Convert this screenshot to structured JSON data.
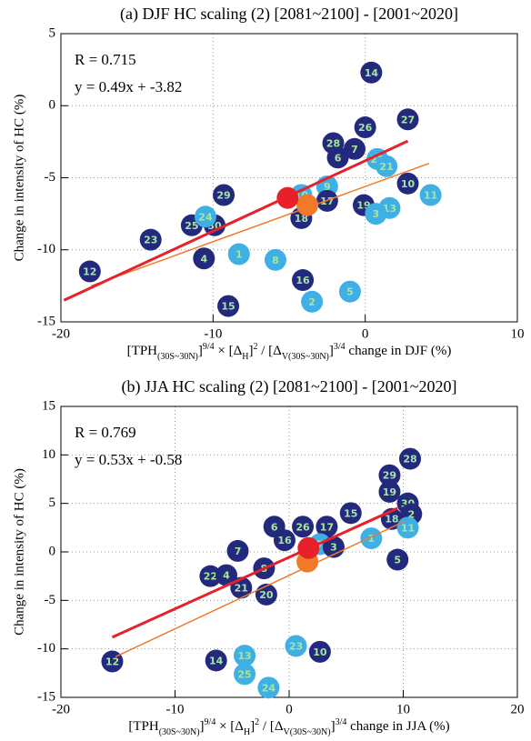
{
  "chart_data": [
    {
      "type": "scatter",
      "title": "(a) DJF HC scaling (2) [2081~2100] - [2001~2020]",
      "xlabel": [
        {
          "text": "[TPH"
        },
        {
          "text": "(30S~30N)",
          "shift": "sub"
        },
        {
          "text": "]"
        },
        {
          "text": "9/4",
          "shift": "super"
        },
        {
          "text": " × [Δ"
        },
        {
          "text": "H",
          "shift": "sub"
        },
        {
          "text": "]"
        },
        {
          "text": "2",
          "shift": "super"
        },
        {
          "text": " / [Δ"
        },
        {
          "text": "V(30S~30N)",
          "shift": "sub"
        },
        {
          "text": "]"
        },
        {
          "text": "3/4",
          "shift": "super"
        },
        {
          "text": " change in DJF (%)"
        }
      ],
      "ylabel": "Change in intensity of HC (%)",
      "annotations": [
        "R = 0.715",
        "y = 0.49x + -3.82"
      ],
      "xlim": [
        -20,
        10
      ],
      "xticks": [
        -20,
        -10,
        0,
        10
      ],
      "ylim": [
        -15,
        5
      ],
      "yticks": [
        -15,
        -10,
        -5,
        0,
        5
      ],
      "grid": true,
      "fit_lines": [
        {
          "color": "#f07a28",
          "x": [
            -18,
            4.2
          ],
          "y": [
            -12.5,
            -4.0
          ]
        },
        {
          "color": "#e8202a",
          "x": [
            -19.8,
            2.8
          ],
          "y": [
            -13.5,
            -2.45
          ]
        }
      ],
      "points": [
        {
          "label": "14",
          "x": 0.4,
          "y": 2.3,
          "color": "#232a7e"
        },
        {
          "label": "27",
          "x": 2.8,
          "y": -0.95,
          "color": "#232a7e"
        },
        {
          "label": "26",
          "x": 0,
          "y": -1.5,
          "color": "#232a7e"
        },
        {
          "label": "28",
          "x": -2.1,
          "y": -2.6,
          "color": "#232a7e"
        },
        {
          "label": "7",
          "x": -0.7,
          "y": -3.0,
          "color": "#232a7e"
        },
        {
          "label": "6",
          "x": -1.8,
          "y": -3.6,
          "color": "#232a7e"
        },
        {
          "label": "22",
          "x": 0.8,
          "y": -3.7,
          "color": "#3fb0e6"
        },
        {
          "label": "21",
          "x": 1.4,
          "y": -4.2,
          "color": "#3fb0e6"
        },
        {
          "label": "9",
          "x": -2.5,
          "y": -5.6,
          "color": "#3fb0e6"
        },
        {
          "label": "10",
          "x": 2.8,
          "y": -5.4,
          "color": "#232a7e"
        },
        {
          "label": "11",
          "x": 4.3,
          "y": -6.2,
          "color": "#3fb0e6"
        },
        {
          "label": "19",
          "x": -0.1,
          "y": -6.9,
          "color": "#232a7e"
        },
        {
          "label": "13",
          "x": 1.6,
          "y": -7.1,
          "color": "#3fb0e6"
        },
        {
          "label": "3",
          "x": 0.7,
          "y": -7.5,
          "color": "#3fb0e6"
        },
        {
          "label": "17",
          "x": -2.5,
          "y": -6.6,
          "color": "#232a7e"
        },
        {
          "label": "18",
          "x": -4.2,
          "y": -7.8,
          "color": "#232a7e"
        },
        {
          "label": "10",
          "x": -4.2,
          "y": -6.2,
          "color": "#3fb0e6"
        },
        {
          "label": "29",
          "x": -9.3,
          "y": -6.2,
          "color": "#232a7e"
        },
        {
          "label": "25",
          "x": -11.4,
          "y": -8.3,
          "color": "#232a7e"
        },
        {
          "label": "30",
          "x": -9.9,
          "y": -8.3,
          "color": "#232a7e"
        },
        {
          "label": "24",
          "x": -10.5,
          "y": -7.7,
          "color": "#3fb0e6"
        },
        {
          "label": "23",
          "x": -14.1,
          "y": -9.3,
          "color": "#232a7e"
        },
        {
          "label": "4",
          "x": -10.6,
          "y": -10.6,
          "color": "#232a7e"
        },
        {
          "label": "1",
          "x": -8.3,
          "y": -10.3,
          "color": "#3fb0e6"
        },
        {
          "label": "8",
          "x": -5.9,
          "y": -10.7,
          "color": "#3fb0e6"
        },
        {
          "label": "12",
          "x": -18.1,
          "y": -11.5,
          "color": "#232a7e"
        },
        {
          "label": "16",
          "x": -4.1,
          "y": -12.1,
          "color": "#232a7e"
        },
        {
          "label": "5",
          "x": -1.0,
          "y": -12.9,
          "color": "#3fb0e6"
        },
        {
          "label": "2",
          "x": -3.5,
          "y": -13.6,
          "color": "#3fb0e6"
        },
        {
          "label": "15",
          "x": -9.0,
          "y": -13.9,
          "color": "#232a7e"
        }
      ],
      "highlights": [
        {
          "x": -3.8,
          "y": -6.9,
          "color": "#f07a28"
        },
        {
          "x": -5.1,
          "y": -6.4,
          "color": "#e8202a"
        }
      ]
    },
    {
      "type": "scatter",
      "title": "(b) JJA HC scaling (2) [2081~2100] - [2001~2020]",
      "xlabel": [
        {
          "text": "[TPH"
        },
        {
          "text": "(30S~30N)",
          "shift": "sub"
        },
        {
          "text": "]"
        },
        {
          "text": "9/4",
          "shift": "super"
        },
        {
          "text": " × [Δ"
        },
        {
          "text": "H",
          "shift": "sub"
        },
        {
          "text": "]"
        },
        {
          "text": "2",
          "shift": "super"
        },
        {
          "text": " / [Δ"
        },
        {
          "text": "V(30S~30N)",
          "shift": "sub"
        },
        {
          "text": "]"
        },
        {
          "text": "3/4",
          "shift": "super"
        },
        {
          "text": " change in JJA (%)"
        }
      ],
      "ylabel": "Change in intensity of HC (%)",
      "annotations": [
        "R = 0.769",
        "y = 0.53x + -0.58"
      ],
      "xlim": [
        -20,
        20
      ],
      "xticks": [
        -20,
        -10,
        0,
        10,
        20
      ],
      "ylim": [
        -15,
        15
      ],
      "yticks": [
        -15,
        -10,
        -5,
        0,
        5,
        10,
        15
      ],
      "grid": true,
      "fit_lines": [
        {
          "color": "#f07a28",
          "x": [
            -15.2,
            10.2
          ],
          "y": [
            -10.8,
            3.2
          ]
        },
        {
          "color": "#e8202a",
          "x": [
            -15.5,
            9.5
          ],
          "y": [
            -8.8,
            4.5
          ]
        }
      ],
      "points": [
        {
          "label": "28",
          "x": 10.6,
          "y": 9.6,
          "color": "#232a7e"
        },
        {
          "label": "29",
          "x": 8.8,
          "y": 7.9,
          "color": "#232a7e"
        },
        {
          "label": "19",
          "x": 8.8,
          "y": 6.2,
          "color": "#232a7e"
        },
        {
          "label": "30",
          "x": 10.4,
          "y": 5.0,
          "color": "#232a7e"
        },
        {
          "label": "2",
          "x": 10.7,
          "y": 3.9,
          "color": "#232a7e"
        },
        {
          "label": "18",
          "x": 9.0,
          "y": 3.4,
          "color": "#232a7e"
        },
        {
          "label": "11",
          "x": 10.4,
          "y": 2.5,
          "color": "#3fb0e6"
        },
        {
          "label": "15",
          "x": 5.4,
          "y": 4.0,
          "color": "#232a7e"
        },
        {
          "label": "1",
          "x": 7.2,
          "y": 1.4,
          "color": "#3fb0e6"
        },
        {
          "label": "5",
          "x": 9.5,
          "y": -0.8,
          "color": "#232a7e"
        },
        {
          "label": "6",
          "x": -1.3,
          "y": 2.6,
          "color": "#232a7e"
        },
        {
          "label": "26",
          "x": 1.2,
          "y": 2.6,
          "color": "#232a7e"
        },
        {
          "label": "17",
          "x": 3.3,
          "y": 2.6,
          "color": "#232a7e"
        },
        {
          "label": "16",
          "x": -0.4,
          "y": 1.2,
          "color": "#232a7e"
        },
        {
          "label": "7",
          "x": 2.7,
          "y": 0.8,
          "color": "#3fb0e6"
        },
        {
          "label": "3",
          "x": 3.9,
          "y": 0.5,
          "color": "#232a7e"
        },
        {
          "label": "7",
          "x": -4.5,
          "y": 0.1,
          "color": "#232a7e"
        },
        {
          "label": "8",
          "x": -2.2,
          "y": -1.7,
          "color": "#232a7e"
        },
        {
          "label": "22",
          "x": -6.9,
          "y": -2.5,
          "color": "#232a7e"
        },
        {
          "label": "4",
          "x": -5.5,
          "y": -2.4,
          "color": "#232a7e"
        },
        {
          "label": "21",
          "x": -4.2,
          "y": -3.7,
          "color": "#232a7e"
        },
        {
          "label": "20",
          "x": -2.0,
          "y": -4.4,
          "color": "#232a7e"
        },
        {
          "label": "12",
          "x": -15.5,
          "y": -11.3,
          "color": "#232a7e"
        },
        {
          "label": "14",
          "x": -6.4,
          "y": -11.2,
          "color": "#232a7e"
        },
        {
          "label": "13",
          "x": -3.9,
          "y": -10.7,
          "color": "#3fb0e6"
        },
        {
          "label": "23",
          "x": 0.6,
          "y": -9.7,
          "color": "#3fb0e6"
        },
        {
          "label": "10",
          "x": 2.7,
          "y": -10.3,
          "color": "#232a7e"
        },
        {
          "label": "25",
          "x": -3.9,
          "y": -12.6,
          "color": "#3fb0e6"
        },
        {
          "label": "24",
          "x": -1.8,
          "y": -14.0,
          "color": "#3fb0e6"
        }
      ],
      "highlights": [
        {
          "x": 1.6,
          "y": -1.0,
          "color": "#f07a28"
        },
        {
          "x": 1.7,
          "y": 0.4,
          "color": "#e8202a"
        }
      ]
    }
  ]
}
